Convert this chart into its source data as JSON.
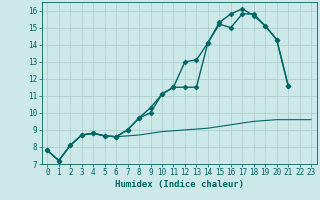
{
  "xlabel": "Humidex (Indice chaleur)",
  "bg_color": "#cce8e8",
  "grid_color": "#aacccc",
  "line_color": "#006666",
  "xlim": [
    -0.5,
    23.5
  ],
  "ylim": [
    7,
    16.5
  ],
  "yticks": [
    7,
    8,
    9,
    10,
    11,
    12,
    13,
    14,
    15,
    16
  ],
  "xticks": [
    0,
    1,
    2,
    3,
    4,
    5,
    6,
    7,
    8,
    9,
    10,
    11,
    12,
    13,
    14,
    15,
    16,
    17,
    18,
    19,
    20,
    21,
    22,
    23
  ],
  "series": [
    {
      "x": [
        0,
        1,
        2,
        3,
        4,
        5,
        6,
        7,
        8,
        9,
        10,
        11,
        12,
        13,
        14,
        15,
        16,
        17,
        18,
        19,
        20,
        21
      ],
      "y": [
        7.8,
        7.2,
        8.1,
        8.7,
        8.8,
        8.65,
        8.6,
        9.0,
        9.7,
        10.3,
        11.1,
        11.5,
        13.0,
        13.1,
        14.1,
        15.3,
        15.8,
        16.1,
        15.7,
        15.1,
        14.3,
        11.6
      ],
      "marker": "D",
      "markersize": 2.5,
      "linewidth": 1.0
    },
    {
      "x": [
        0,
        1,
        2,
        3,
        4,
        5,
        6,
        7,
        8,
        9,
        10,
        11,
        12,
        13,
        14,
        15,
        16,
        17,
        18,
        19,
        20,
        21
      ],
      "y": [
        7.8,
        7.2,
        8.1,
        8.7,
        8.8,
        8.65,
        8.6,
        9.0,
        9.7,
        10.0,
        11.1,
        11.5,
        11.5,
        11.5,
        14.1,
        15.2,
        15.0,
        15.8,
        15.8,
        15.1,
        14.3,
        11.6
      ],
      "marker": "D",
      "markersize": 2.5,
      "linewidth": 1.0
    },
    {
      "x": [
        0,
        1,
        2,
        3,
        4,
        5,
        6,
        7,
        8,
        9,
        10,
        11,
        12,
        13,
        14,
        15,
        16,
        17,
        18,
        19,
        20,
        21,
        22,
        23
      ],
      "y": [
        7.8,
        7.2,
        8.1,
        8.7,
        8.8,
        8.65,
        8.6,
        8.65,
        8.7,
        8.8,
        8.9,
        8.95,
        9.0,
        9.05,
        9.1,
        9.2,
        9.3,
        9.4,
        9.5,
        9.55,
        9.6,
        9.6,
        9.6,
        9.6
      ],
      "marker": null,
      "markersize": 0,
      "linewidth": 0.8
    }
  ]
}
